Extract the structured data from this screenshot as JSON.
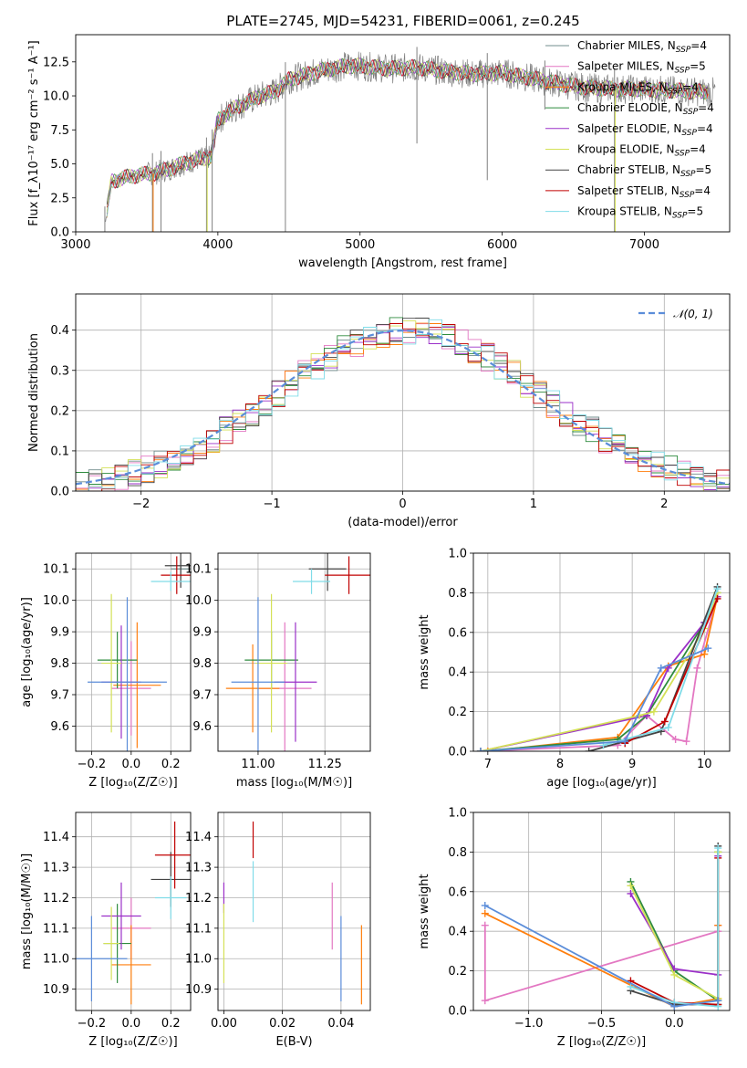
{
  "figure_title": "PLATE=2745, MJD=54231, FIBERID=0061, z=0.245",
  "colors": {
    "chabrier_miles": "#708c8c",
    "salpeter_miles": "#e377c2",
    "kroupa_miles": "#ff7f0e",
    "chabrier_elodie": "#2e8b3e",
    "salpeter_elodie": "#9b30c8",
    "kroupa_elodie": "#d4e157",
    "chabrier_stelib": "#444444",
    "salpeter_stelib": "#c00000",
    "kroupa_stelib": "#80dce8",
    "normal": "#5b8dd9",
    "data": "#808080"
  },
  "chart_data": [
    {
      "type": "line",
      "id": "spectrum",
      "title": "PLATE=2745, MJD=54231, FIBERID=0061, z=0.245",
      "xlabel": "wavelength [Angstrom, rest frame]",
      "ylabel": "Flux [f_λ10⁻¹⁷ erg cm⁻² s⁻¹ A⁻¹]",
      "xlim": [
        3000,
        7600
      ],
      "ylim": [
        0,
        14.5
      ],
      "xticks": [
        "3000",
        "4000",
        "5000",
        "6000",
        "7000"
      ],
      "yticks": [
        "0.0",
        "2.5",
        "5.0",
        "7.5",
        "10.0",
        "12.5"
      ],
      "grid": false,
      "legend_position": "right",
      "legend": [
        {
          "label": "Chabrier MILES, N_SSP=4",
          "color_key": "chabrier_miles"
        },
        {
          "label": "Salpeter MILES, N_SSP=5",
          "color_key": "salpeter_miles"
        },
        {
          "label": "Kroupa MILES, N_SSP=4",
          "color_key": "kroupa_miles"
        },
        {
          "label": "Chabrier ELODIE, N_SSP=4",
          "color_key": "chabrier_elodie"
        },
        {
          "label": "Salpeter ELODIE, N_SSP=4",
          "color_key": "salpeter_elodie"
        },
        {
          "label": "Kroupa ELODIE, N_SSP=4",
          "color_key": "kroupa_elodie"
        },
        {
          "label": "Chabrier STELIB, N_SSP=5",
          "color_key": "chabrier_stelib"
        },
        {
          "label": "Salpeter STELIB, N_SSP=4",
          "color_key": "salpeter_stelib"
        },
        {
          "label": "Kroupa STELIB, N_SSP=5",
          "color_key": "kroupa_stelib"
        }
      ],
      "continuum": {
        "x": [
          3200,
          3250,
          3350,
          3450,
          3550,
          3650,
          3750,
          3850,
          3950,
          4000,
          4100,
          4200,
          4300,
          4400,
          4500,
          4600,
          4700,
          4800,
          4900,
          5000,
          5200,
          5400,
          5600,
          5800,
          6000,
          6200,
          6400,
          6600,
          6800,
          7000,
          7200,
          7400,
          7500
        ],
        "y": [
          0,
          3.7,
          4.0,
          4.2,
          4.3,
          4.6,
          5.0,
          5.3,
          5.5,
          8.2,
          9.0,
          9.5,
          10.0,
          10.3,
          11.2,
          11.5,
          11.8,
          12.0,
          12.2,
          12.2,
          12.0,
          12.1,
          11.8,
          11.6,
          11.7,
          11.3,
          10.9,
          10.6,
          10.5,
          10.5,
          10.4,
          10.3,
          10.3
        ]
      },
      "dips": [
        {
          "x": 3205,
          "y": 0.0
        },
        {
          "x": 3540,
          "y": 0.0
        },
        {
          "x": 3600,
          "y": 0.0
        },
        {
          "x": 3920,
          "y": 0.0
        },
        {
          "x": 3960,
          "y": 0.0
        },
        {
          "x": 4475,
          "y": 0.0
        },
        {
          "x": 5400,
          "y": 6.5
        },
        {
          "x": 5895,
          "y": 3.8
        },
        {
          "x": 6300,
          "y": 9.0
        },
        {
          "x": 6790,
          "y": 0.0
        }
      ]
    },
    {
      "type": "bar",
      "id": "residuals",
      "xlabel": "(data-model)/error",
      "ylabel": "Normed distribution",
      "xlim": [
        -2.5,
        2.5
      ],
      "ylim": [
        0,
        0.49
      ],
      "xticks": [
        "−2",
        "−1",
        "0",
        "1",
        "2"
      ],
      "yticks": [
        "0.0",
        "0.1",
        "0.2",
        "0.3",
        "0.4"
      ],
      "grid": true,
      "legend_position": "top-right",
      "legend": [
        {
          "label": "𝒩(0, 1)",
          "color_key": "normal"
        }
      ],
      "bin_edges": [
        -2.5,
        -2.4,
        -2.3,
        -2.2,
        -2.1,
        -2.0,
        -1.9,
        -1.8,
        -1.7,
        -1.6,
        -1.5,
        -1.4,
        -1.3,
        -1.2,
        -1.1,
        -1.0,
        -0.9,
        -0.8,
        -0.7,
        -0.6,
        -0.5,
        -0.4,
        -0.3,
        -0.2,
        -0.1,
        0.0,
        0.1,
        0.2,
        0.3,
        0.4,
        0.5,
        0.6,
        0.7,
        0.8,
        0.9,
        1.0,
        1.1,
        1.2,
        1.3,
        1.4,
        1.5,
        1.6,
        1.7,
        1.8,
        1.9,
        2.0,
        2.1,
        2.2,
        2.3,
        2.4,
        2.5
      ],
      "histogram_normal": [
        0.018,
        0.023,
        0.028,
        0.035,
        0.044,
        0.054,
        0.066,
        0.079,
        0.094,
        0.111,
        0.13,
        0.15,
        0.171,
        0.194,
        0.218,
        0.242,
        0.266,
        0.29,
        0.312,
        0.333,
        0.352,
        0.368,
        0.381,
        0.391,
        0.397,
        0.399,
        0.397,
        0.391,
        0.381,
        0.368,
        0.352,
        0.333,
        0.312,
        0.29,
        0.266,
        0.242,
        0.218,
        0.194,
        0.171,
        0.15,
        0.13,
        0.111,
        0.094,
        0.079,
        0.066,
        0.054,
        0.044,
        0.035,
        0.028,
        0.023
      ],
      "normal_curve": {
        "label": "𝒩(0, 1)",
        "mean": 0,
        "sigma": 1
      }
    },
    {
      "type": "scatter",
      "id": "age_vs_Z",
      "xlabel": "Z [log₁₀(Z/Z☉)]",
      "ylabel": "age  [log₁₀(age/yr)]",
      "xlim": [
        -0.28,
        0.3
      ],
      "ylim": [
        9.52,
        10.15
      ],
      "xticks": [
        "−0.2",
        "0.0",
        "0.2"
      ],
      "yticks": [
        "9.6",
        "9.7",
        "9.8",
        "9.9",
        "10.0",
        "10.1"
      ],
      "grid": true,
      "points": [
        {
          "key": "chabrier_miles",
          "x": 0.25,
          "y": 10.1,
          "xerr": 0.05,
          "yerr": 0.03
        },
        {
          "key": "salpeter_miles",
          "x": 0.0,
          "y": 9.72,
          "xerr": 0.1,
          "yerr": 0.15
        },
        {
          "key": "kroupa_miles",
          "x": 0.03,
          "y": 9.73,
          "xerr": 0.12,
          "yerr": 0.2
        },
        {
          "key": "chabrier_elodie",
          "x": -0.07,
          "y": 9.81,
          "xerr": 0.1,
          "yerr": 0.09
        },
        {
          "key": "salpeter_elodie",
          "x": -0.05,
          "y": 9.74,
          "xerr": 0.1,
          "yerr": 0.18
        },
        {
          "key": "kroupa_elodie",
          "x": -0.1,
          "y": 9.8,
          "xerr": 0.05,
          "yerr": 0.22
        },
        {
          "key": "chabrier_stelib",
          "x": 0.25,
          "y": 10.11,
          "xerr": 0.08,
          "yerr": 0.07
        },
        {
          "key": "salpeter_stelib",
          "x": 0.23,
          "y": 10.08,
          "xerr": 0.08,
          "yerr": 0.06
        },
        {
          "key": "kroupa_stelib",
          "x": 0.2,
          "y": 10.06,
          "xerr": 0.1,
          "yerr": 0.03
        },
        {
          "key": "normal",
          "x": -0.02,
          "y": 9.74,
          "xerr": 0.2,
          "yerr": 0.27
        }
      ]
    },
    {
      "type": "scatter",
      "id": "age_vs_mass",
      "xlabel": "mass [log₁₀(M/M☉)]",
      "ylabel": "",
      "xlim": [
        10.85,
        11.42
      ],
      "ylim": [
        9.52,
        10.15
      ],
      "xticks": [
        "11.00",
        "11.25"
      ],
      "yticks": [
        "9.6",
        "9.7",
        "9.8",
        "9.9",
        "10.0",
        "10.1"
      ],
      "grid": true,
      "points": [
        {
          "key": "salpeter_miles",
          "x": 11.1,
          "y": 9.72,
          "xerr": 0.1,
          "yerr": 0.21
        },
        {
          "key": "kroupa_miles",
          "x": 10.98,
          "y": 9.72,
          "xerr": 0.1,
          "yerr": 0.14
        },
        {
          "key": "chabrier_elodie",
          "x": 11.05,
          "y": 9.81,
          "xerr": 0.1,
          "yerr": 0.09
        },
        {
          "key": "salpeter_elodie",
          "x": 11.14,
          "y": 9.74,
          "xerr": 0.08,
          "yerr": 0.19
        },
        {
          "key": "kroupa_elodie",
          "x": 11.05,
          "y": 9.8,
          "xerr": 0.06,
          "yerr": 0.22
        },
        {
          "key": "chabrier_stelib",
          "x": 11.26,
          "y": 10.1,
          "xerr": 0.07,
          "yerr": 0.07
        },
        {
          "key": "salpeter_stelib",
          "x": 11.34,
          "y": 10.08,
          "xerr": 0.09,
          "yerr": 0.06
        },
        {
          "key": "kroupa_stelib",
          "x": 11.2,
          "y": 10.06,
          "xerr": 0.07,
          "yerr": 0.04
        },
        {
          "key": "normal",
          "x": 11.0,
          "y": 9.74,
          "xerr": 0.1,
          "yerr": 0.27
        }
      ]
    },
    {
      "type": "line",
      "id": "massweight_vs_age",
      "xlabel": "age  [log₁₀(age/yr)]",
      "ylabel": "mass weight",
      "xlim": [
        6.8,
        10.35
      ],
      "ylim": [
        0,
        1.0
      ],
      "xticks": [
        "7",
        "8",
        "9",
        "10"
      ],
      "yticks": [
        "0.0",
        "0.2",
        "0.4",
        "0.6",
        "0.8",
        "1.0"
      ],
      "grid": true,
      "series": [
        {
          "key": "salpeter_miles",
          "x": [
            6.9,
            8.8,
            9.2,
            9.6,
            9.75,
            9.9,
            10.18
          ],
          "y": [
            0.0,
            0.03,
            0.18,
            0.06,
            0.05,
            0.42,
            0.78
          ]
        },
        {
          "key": "kroupa_miles",
          "x": [
            7.0,
            8.8,
            9.5,
            10.0,
            10.18
          ],
          "y": [
            0.0,
            0.07,
            0.43,
            0.49,
            0.78
          ]
        },
        {
          "key": "chabrier_elodie",
          "x": [
            6.9,
            8.8,
            9.2,
            10.0,
            10.18
          ],
          "y": [
            0.0,
            0.06,
            0.18,
            0.65,
            0.8
          ]
        },
        {
          "key": "salpeter_elodie",
          "x": [
            6.9,
            9.2,
            9.5,
            10.0,
            10.18
          ],
          "y": [
            0.0,
            0.18,
            0.42,
            0.65,
            0.78
          ]
        },
        {
          "key": "kroupa_elodie",
          "x": [
            6.9,
            9.1,
            9.3,
            10.0,
            10.18
          ],
          "y": [
            0.0,
            0.18,
            0.2,
            0.62,
            0.8
          ]
        },
        {
          "key": "chabrier_stelib",
          "x": [
            8.4,
            9.4,
            10.18
          ],
          "y": [
            0.0,
            0.1,
            0.83
          ]
        },
        {
          "key": "salpeter_stelib",
          "x": [
            8.9,
            9.45,
            10.18
          ],
          "y": [
            0.04,
            0.15,
            0.77
          ]
        },
        {
          "key": "kroupa_stelib",
          "x": [
            8.6,
            9.5,
            10.18
          ],
          "y": [
            0.03,
            0.12,
            0.82
          ]
        },
        {
          "key": "normal",
          "x": [
            6.9,
            8.9,
            9.4,
            10.05
          ],
          "y": [
            0.0,
            0.05,
            0.42,
            0.52
          ]
        }
      ]
    },
    {
      "type": "scatter",
      "id": "mass_vs_Z",
      "xlabel": "Z [log₁₀(Z/Z☉)]",
      "ylabel": "mass [log₁₀(M/M☉)]",
      "xlim": [
        -0.28,
        0.3
      ],
      "ylim": [
        10.83,
        11.48
      ],
      "xticks": [
        "−0.2",
        "0.0",
        "0.2"
      ],
      "yticks": [
        "10.9",
        "11.0",
        "11.1",
        "11.2",
        "11.3",
        "11.4"
      ],
      "grid": true,
      "points": [
        {
          "key": "salpeter_miles",
          "x": 0.0,
          "y": 11.1,
          "xerr": 0.1,
          "yerr": 0.1
        },
        {
          "key": "kroupa_miles",
          "x": 0.0,
          "y": 10.98,
          "xerr": 0.1,
          "yerr": 0.13
        },
        {
          "key": "chabrier_elodie",
          "x": -0.07,
          "y": 11.05,
          "xerr": 0.07,
          "yerr": 0.13
        },
        {
          "key": "salpeter_elodie",
          "x": -0.05,
          "y": 11.14,
          "xerr": 0.1,
          "yerr": 0.11
        },
        {
          "key": "kroupa_elodie",
          "x": -0.1,
          "y": 11.05,
          "xerr": 0.04,
          "yerr": 0.12
        },
        {
          "key": "chabrier_stelib",
          "x": 0.2,
          "y": 11.26,
          "xerr": 0.1,
          "yerr": 0.09
        },
        {
          "key": "salpeter_stelib",
          "x": 0.22,
          "y": 11.34,
          "xerr": 0.1,
          "yerr": 0.11
        },
        {
          "key": "kroupa_stelib",
          "x": 0.2,
          "y": 11.2,
          "xerr": 0.08,
          "yerr": 0.07
        },
        {
          "key": "normal",
          "x": -0.2,
          "y": 11.0,
          "xerr": 0.18,
          "yerr": 0.14
        }
      ]
    },
    {
      "type": "scatter",
      "id": "mass_vs_ebv",
      "xlabel": "E(B-V)",
      "ylabel": "",
      "xlim": [
        -0.002,
        0.05
      ],
      "ylim": [
        10.83,
        11.48
      ],
      "xticks": [
        "0.00",
        "0.02",
        "0.04"
      ],
      "yticks": [
        "10.9",
        "11.0",
        "11.1",
        "11.2",
        "11.3",
        "11.4"
      ],
      "grid": true,
      "points": [
        {
          "key": "salpeter_elodie",
          "x": 0.0,
          "y": 11.2,
          "yerr": 0.05
        },
        {
          "key": "kroupa_elodie",
          "x": 0.0,
          "y": 11.05,
          "yerr": 0.13
        },
        {
          "key": "salpeter_stelib",
          "x": 0.01,
          "y": 11.39,
          "yerr": 0.06
        },
        {
          "key": "kroupa_stelib",
          "x": 0.01,
          "y": 11.22,
          "yerr": 0.1
        },
        {
          "key": "salpeter_miles",
          "x": 0.037,
          "y": 11.14,
          "yerr": 0.11
        },
        {
          "key": "normal",
          "x": 0.04,
          "y": 11.0,
          "yerr": 0.14
        },
        {
          "key": "kroupa_miles",
          "x": 0.047,
          "y": 10.98,
          "yerr": 0.13
        }
      ]
    },
    {
      "type": "line",
      "id": "massweight_vs_Z",
      "xlabel": "Z [log₁₀(Z/Z☉)]",
      "ylabel": "mass weight",
      "xlim": [
        -1.38,
        0.38
      ],
      "ylim": [
        0,
        1.0
      ],
      "xticks": [
        "−1.0",
        "−0.5",
        "0.0"
      ],
      "yticks": [
        "0.0",
        "0.2",
        "0.4",
        "0.6",
        "0.8",
        "1.0"
      ],
      "grid": true,
      "series": [
        {
          "key": "salpeter_miles",
          "x": [
            -1.3,
            -1.3,
            0.3,
            0.3
          ],
          "y": [
            0.43,
            0.05,
            0.4,
            0.43
          ]
        },
        {
          "key": "kroupa_miles",
          "x": [
            -1.3,
            0.0,
            0.3,
            0.3
          ],
          "y": [
            0.49,
            0.02,
            0.06,
            0.43
          ]
        },
        {
          "key": "chabrier_elodie",
          "x": [
            -0.3,
            0.0,
            0.3,
            0.3
          ],
          "y": [
            0.65,
            0.2,
            0.05,
            0.8
          ]
        },
        {
          "key": "salpeter_elodie",
          "x": [
            -0.3,
            0.0,
            0.3,
            0.3
          ],
          "y": [
            0.59,
            0.21,
            0.18,
            0.78
          ]
        },
        {
          "key": "kroupa_elodie",
          "x": [
            -0.3,
            0.0,
            0.3,
            0.3
          ],
          "y": [
            0.63,
            0.18,
            0.06,
            0.8
          ]
        },
        {
          "key": "chabrier_stelib",
          "x": [
            -0.3,
            0.0,
            0.3,
            0.3
          ],
          "y": [
            0.1,
            0.03,
            0.03,
            0.83
          ]
        },
        {
          "key": "salpeter_stelib",
          "x": [
            -0.3,
            0.0,
            0.3,
            0.3
          ],
          "y": [
            0.15,
            0.04,
            0.03,
            0.77
          ]
        },
        {
          "key": "kroupa_stelib",
          "x": [
            -0.3,
            0.0,
            0.3,
            0.3
          ],
          "y": [
            0.12,
            0.04,
            0.02,
            0.82
          ]
        },
        {
          "key": "normal",
          "x": [
            -1.3,
            0.0,
            0.3
          ],
          "y": [
            0.53,
            0.02,
            0.05
          ]
        }
      ]
    }
  ]
}
